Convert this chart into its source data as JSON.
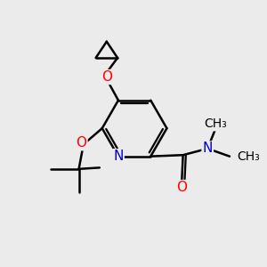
{
  "bg_color": "#ebebeb",
  "line_color": "#000000",
  "bond_width": 1.8,
  "atom_colors": {
    "O": "#ff0000",
    "N": "#0000cc",
    "C": "#000000"
  },
  "font_size_atoms": 11,
  "font_size_methyl": 10
}
